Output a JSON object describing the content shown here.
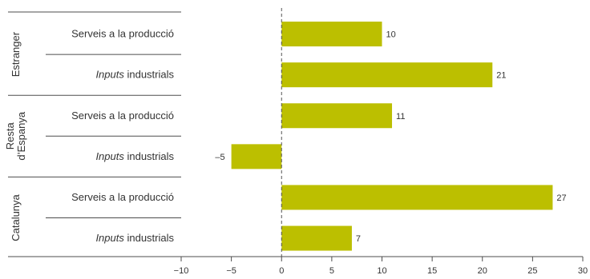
{
  "chart_data": {
    "type": "bar",
    "orientation": "horizontal",
    "xlim": [
      -10,
      30
    ],
    "xticks": [
      "-10",
      "-5",
      "0",
      "5",
      "10",
      "15",
      "20",
      "25",
      "30"
    ],
    "tick_values": [
      -10,
      -5,
      0,
      5,
      10,
      15,
      20,
      25,
      30
    ],
    "bar_color": "#bcbf00",
    "groups": [
      {
        "label_lines": [
          "Estranger"
        ],
        "bars": [
          {
            "italic": "",
            "label": "Serveis a la producció",
            "value": 10,
            "value_label": "10"
          },
          {
            "italic": "Inputs",
            "label": " industrials",
            "value": 21,
            "value_label": "21"
          }
        ]
      },
      {
        "label_lines": [
          "Resta",
          "d’Espanya"
        ],
        "bars": [
          {
            "italic": "",
            "label": "Serveis a la producció",
            "value": 11,
            "value_label": "11"
          },
          {
            "italic": "Inputs",
            "label": " industrials",
            "value": -5,
            "value_label": "–5"
          }
        ]
      },
      {
        "label_lines": [
          "Catalunya"
        ],
        "bars": [
          {
            "italic": "",
            "label": "Serveis a la producció",
            "value": 27,
            "value_label": "27"
          },
          {
            "italic": "Inputs",
            "label": " industrials",
            "value": 7,
            "value_label": "7"
          }
        ]
      }
    ]
  }
}
